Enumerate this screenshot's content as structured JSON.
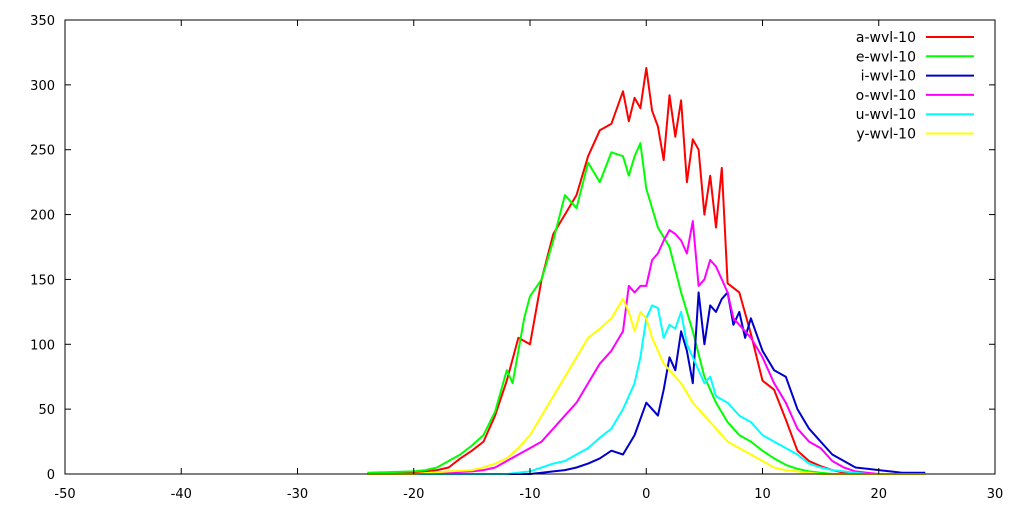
{
  "chart_data": {
    "type": "line",
    "title": "",
    "xlabel": "",
    "ylabel": "",
    "xlim": [
      -50,
      30
    ],
    "ylim": [
      0,
      350
    ],
    "grid": false,
    "legend_position": "top-right",
    "x_ticks": [
      "-50",
      "-40",
      "-30",
      "-20",
      "-10",
      "0",
      "10",
      "20",
      "30"
    ],
    "y_ticks": [
      "0",
      "50",
      "100",
      "150",
      "200",
      "250",
      "300",
      "350"
    ],
    "series": [
      {
        "name": "a-wvl-10",
        "color": "#ff0000",
        "x": [
          -24,
          -20,
          -19,
          -18,
          -17,
          -16,
          -15,
          -14,
          -13,
          -12,
          -11,
          -10,
          -9,
          -8,
          -7,
          -6,
          -5,
          -4,
          -3,
          -2,
          -1.5,
          -1,
          -0.5,
          0,
          0.5,
          1,
          1.5,
          2,
          2.5,
          3,
          3.5,
          4,
          4.5,
          5,
          5.5,
          6,
          6.5,
          7,
          8,
          9,
          10,
          11,
          12,
          13,
          14,
          15,
          16,
          17,
          18,
          19,
          20,
          21,
          22,
          23,
          24
        ],
        "y": [
          0,
          1,
          2,
          3,
          5,
          12,
          18,
          25,
          45,
          72,
          105,
          100,
          150,
          185,
          200,
          215,
          245,
          265,
          270,
          295,
          272,
          290,
          282,
          313,
          280,
          268,
          242,
          292,
          260,
          288,
          225,
          258,
          250,
          200,
          230,
          190,
          236,
          147,
          140,
          108,
          72,
          65,
          42,
          18,
          10,
          6,
          3,
          1,
          0,
          0,
          0,
          0,
          0,
          0,
          0
        ]
      },
      {
        "name": "e-wvl-10",
        "color": "#00ff00",
        "x": [
          -24,
          -20,
          -19,
          -18,
          -17,
          -16,
          -15,
          -14,
          -13,
          -12,
          -11.5,
          -11,
          -10.5,
          -10,
          -9,
          -8,
          -7,
          -6,
          -5,
          -4,
          -3,
          -2,
          -1.5,
          -1,
          -0.5,
          0,
          0.5,
          1,
          2,
          3,
          4,
          5,
          6,
          7,
          8,
          9,
          10,
          11,
          12,
          13,
          14,
          15,
          16,
          17,
          18,
          19,
          20,
          21,
          22,
          23,
          24
        ],
        "y": [
          1,
          2,
          3,
          5,
          10,
          15,
          22,
          30,
          48,
          80,
          70,
          95,
          120,
          137,
          150,
          180,
          215,
          205,
          240,
          225,
          248,
          245,
          230,
          245,
          255,
          220,
          205,
          190,
          175,
          140,
          110,
          75,
          55,
          40,
          30,
          25,
          18,
          12,
          7,
          4,
          2,
          1,
          0,
          0,
          0,
          0,
          0,
          0,
          0,
          0,
          0
        ]
      },
      {
        "name": "i-wvl-10",
        "color": "#0000cc",
        "x": [
          -24,
          -10,
          -9,
          -8,
          -7,
          -6,
          -5,
          -4,
          -3,
          -2,
          -1,
          0,
          0.5,
          1,
          1.5,
          2,
          2.5,
          3,
          3.5,
          4,
          4.5,
          5,
          5.5,
          6,
          6.5,
          7,
          7.5,
          8,
          8.5,
          9,
          10,
          11,
          12,
          13,
          14,
          15,
          16,
          17,
          18,
          19,
          20,
          21,
          22,
          24
        ],
        "y": [
          0,
          0,
          1,
          2,
          3,
          5,
          8,
          12,
          18,
          15,
          30,
          55,
          50,
          45,
          65,
          90,
          80,
          110,
          95,
          70,
          140,
          100,
          130,
          125,
          135,
          140,
          115,
          125,
          105,
          120,
          95,
          80,
          75,
          50,
          35,
          25,
          15,
          10,
          5,
          4,
          3,
          2,
          1,
          1
        ]
      },
      {
        "name": "o-wvl-10",
        "color": "#ff00ff",
        "x": [
          -24,
          -20,
          -15,
          -14,
          -13,
          -12,
          -11,
          -10,
          -9,
          -8,
          -7,
          -6,
          -5,
          -4,
          -3,
          -2,
          -1.5,
          -1,
          -0.5,
          0,
          0.5,
          1,
          1.5,
          2,
          2.5,
          3,
          3.5,
          4,
          4.5,
          5,
          5.5,
          6,
          6.5,
          7,
          7.5,
          8,
          9,
          10,
          11,
          12,
          13,
          14,
          15,
          16,
          17,
          18,
          19,
          20,
          24
        ],
        "y": [
          0,
          0,
          2,
          3,
          5,
          10,
          15,
          20,
          25,
          35,
          45,
          55,
          70,
          85,
          95,
          110,
          145,
          140,
          145,
          145,
          165,
          170,
          180,
          188,
          185,
          180,
          170,
          195,
          145,
          150,
          165,
          160,
          150,
          140,
          120,
          115,
          105,
          90,
          70,
          55,
          35,
          25,
          20,
          10,
          5,
          2,
          1,
          0,
          0
        ]
      },
      {
        "name": "u-wvl-10",
        "color": "#00ffff",
        "x": [
          -24,
          -12,
          -10,
          -9,
          -8,
          -7,
          -6,
          -5,
          -4,
          -3,
          -2,
          -1,
          -0.5,
          0,
          0.5,
          1,
          1.5,
          2,
          2.5,
          3,
          3.5,
          4,
          4.5,
          5,
          5.5,
          6,
          7,
          8,
          9,
          10,
          11,
          12,
          13,
          14,
          15,
          16,
          17,
          18,
          19,
          20,
          24
        ],
        "y": [
          0,
          0,
          2,
          5,
          8,
          10,
          15,
          20,
          28,
          35,
          50,
          70,
          90,
          120,
          130,
          128,
          105,
          115,
          112,
          125,
          100,
          90,
          80,
          70,
          75,
          60,
          55,
          45,
          40,
          30,
          25,
          20,
          15,
          8,
          5,
          3,
          2,
          1,
          0,
          0,
          0
        ]
      },
      {
        "name": "y-wvl-10",
        "color": "#ffff00",
        "x": [
          -24,
          -20,
          -17,
          -15,
          -14,
          -13,
          -12,
          -11,
          -10,
          -9,
          -8,
          -7,
          -6,
          -5,
          -4,
          -3,
          -2,
          -1.5,
          -1,
          -0.5,
          0,
          0.5,
          1,
          1.5,
          2,
          3,
          4,
          5,
          6,
          7,
          8,
          9,
          10,
          11,
          12,
          13,
          14,
          15,
          16,
          17,
          18,
          24
        ],
        "y": [
          0,
          0,
          2,
          3,
          5,
          8,
          12,
          20,
          30,
          45,
          60,
          75,
          90,
          105,
          112,
          120,
          135,
          125,
          110,
          125,
          120,
          105,
          95,
          85,
          80,
          70,
          55,
          45,
          35,
          25,
          20,
          15,
          10,
          5,
          3,
          2,
          1,
          0,
          0,
          0,
          0,
          0
        ]
      }
    ]
  }
}
